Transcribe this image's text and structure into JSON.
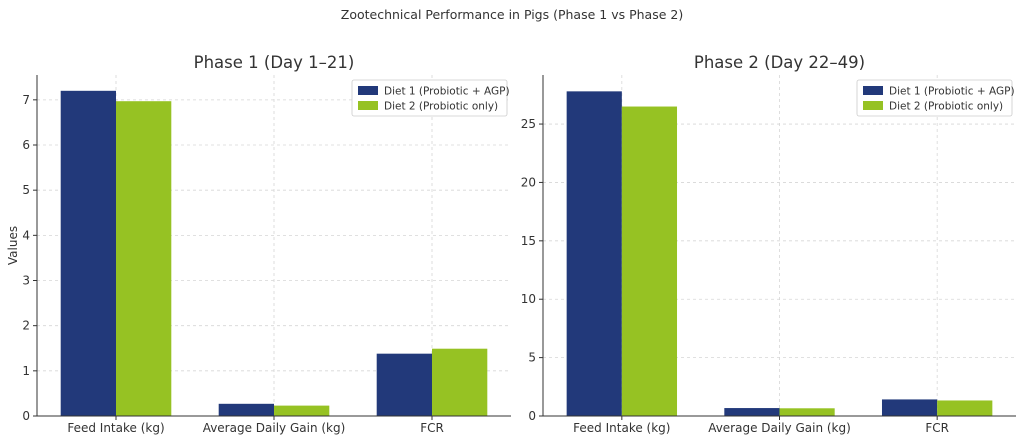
{
  "figure": {
    "suptitle": "Zootechnical Performance in Pigs (Phase 1 vs Phase 2)"
  },
  "colors": {
    "diet1": "#22397a",
    "diet2": "#96c223"
  },
  "chart_data": [
    {
      "type": "bar",
      "title": "Phase 1 (Day 1–21)",
      "ylabel": "Values",
      "xlabel": "",
      "categories": [
        "Feed Intake (kg)",
        "Average Daily Gain (kg)",
        "FCR"
      ],
      "series": [
        {
          "name": "Diet 1 (Probiotic + AGP)",
          "values": [
            7.2,
            0.27,
            1.38
          ]
        },
        {
          "name": "Diet 2 (Probiotic only)",
          "values": [
            6.97,
            0.23,
            1.49
          ]
        }
      ],
      "ylim": [
        0,
        7.55
      ],
      "yticks": [
        0,
        1,
        2,
        3,
        4,
        5,
        6,
        7
      ],
      "grid": true,
      "legend_position": "top-right"
    },
    {
      "type": "bar",
      "title": "Phase 2 (Day 22–49)",
      "ylabel": "",
      "xlabel": "",
      "categories": [
        "Feed Intake (kg)",
        "Average Daily Gain (kg)",
        "FCR"
      ],
      "series": [
        {
          "name": "Diet 1 (Probiotic + AGP)",
          "values": [
            27.8,
            0.68,
            1.42
          ]
        },
        {
          "name": "Diet 2 (Probiotic only)",
          "values": [
            26.5,
            0.66,
            1.33
          ]
        }
      ],
      "ylim": [
        0,
        29.2
      ],
      "yticks": [
        0,
        5,
        10,
        15,
        20,
        25
      ],
      "grid": true,
      "legend_position": "top-right"
    }
  ]
}
